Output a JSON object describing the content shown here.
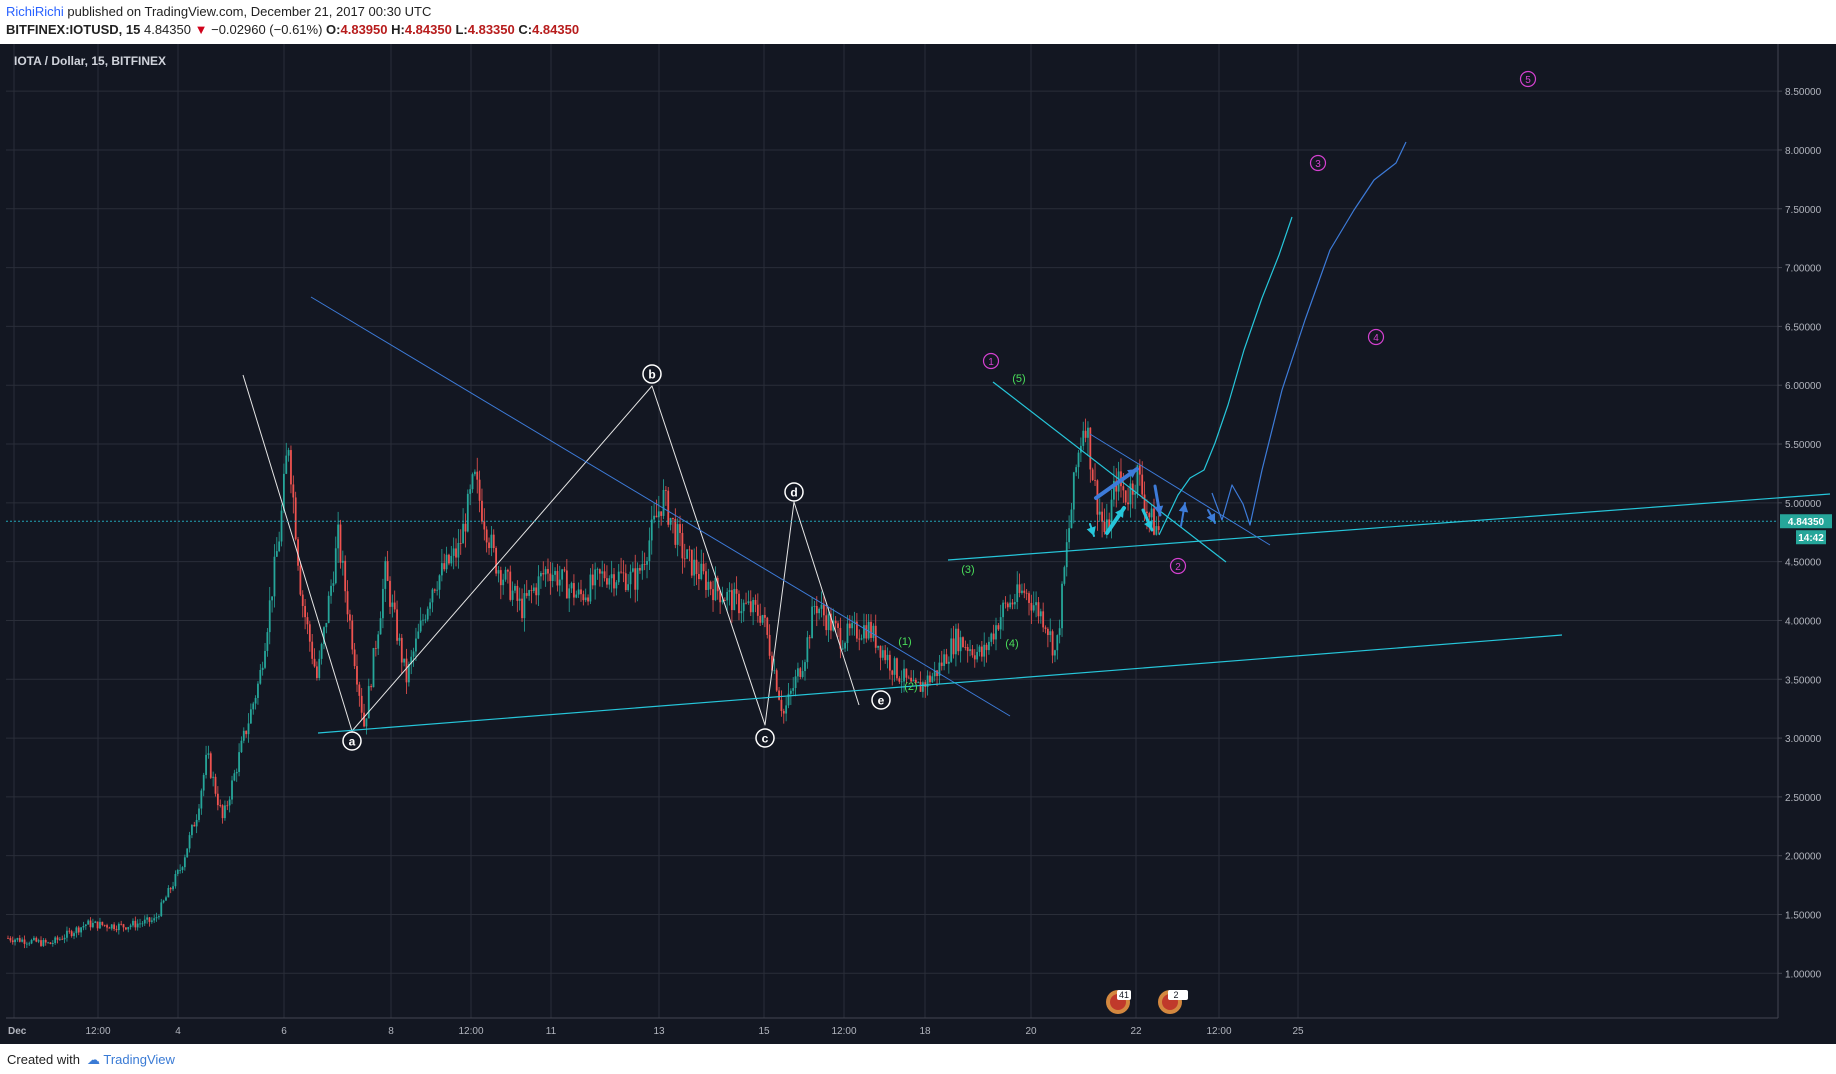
{
  "header": {
    "author": "RichiRichi",
    "published": " published on TradingView.com, December 21, 2017 00:30 UTC",
    "symbol": "BITFINEX:IOTUSD, 15",
    "last": "4.84350",
    "change_arrow": "▼",
    "change": "−0.02960 (−0.61%)",
    "o_label": "O:",
    "o": "4.83950",
    "h_label": "H:",
    "h": "4.84350",
    "l_label": "L:",
    "l": "4.83350",
    "c_label": "C:",
    "c": "4.84350"
  },
  "chart_title": "IOTA / Dollar, 15, BITFINEX",
  "price_badge": "4.84350",
  "time_badge": "14:42",
  "footer": {
    "created_with": "Created with",
    "brand": "TradingView"
  },
  "event_badges": [
    "41",
    "2"
  ],
  "colors": {
    "background": "#131722",
    "grid": "#2a2e39",
    "candle_up": "#26a69a",
    "candle_down": "#ef5350",
    "cyan": "#26c6da",
    "blue": "#3d7bd9",
    "magenta": "#d441d0",
    "green": "#4ade5a",
    "white": "#e6e6e6"
  },
  "chart_data": {
    "type": "line",
    "title": "IOTA / Dollar, 15, BITFINEX",
    "y_ticks": [
      "1.00000",
      "1.50000",
      "2.00000",
      "2.50000",
      "3.00000",
      "3.50000",
      "4.00000",
      "4.50000",
      "5.00000",
      "5.50000",
      "6.00000",
      "6.50000",
      "7.00000",
      "7.50000",
      "8.00000",
      "8.50000"
    ],
    "x_ticks": [
      "Dec",
      "12:00",
      "4",
      "6",
      "8",
      "12:00",
      "11",
      "13",
      "15",
      "12:00",
      "18",
      "20",
      "22",
      "12:00",
      "25"
    ],
    "ylim": [
      0.62,
      8.85
    ],
    "last_price": 4.8435,
    "price": [
      {
        "x": 0,
        "y": 1.3
      },
      {
        "x": 0.8,
        "y": 1.25
      },
      {
        "x": 1.5,
        "y": 1.42
      },
      {
        "x": 2.2,
        "y": 1.4
      },
      {
        "x": 2.8,
        "y": 1.45
      },
      {
        "x": 3.3,
        "y": 1.9
      },
      {
        "x": 3.6,
        "y": 2.35
      },
      {
        "x": 3.8,
        "y": 2.85
      },
      {
        "x": 4.1,
        "y": 2.3
      },
      {
        "x": 4.5,
        "y": 3.0
      },
      {
        "x": 4.8,
        "y": 3.5
      },
      {
        "x": 5.2,
        "y": 4.8
      },
      {
        "x": 5.35,
        "y": 5.55
      },
      {
        "x": 5.6,
        "y": 4.2
      },
      {
        "x": 5.9,
        "y": 3.5
      },
      {
        "x": 6.3,
        "y": 4.7
      },
      {
        "x": 6.8,
        "y": 3.1
      },
      {
        "x": 7.2,
        "y": 4.4
      },
      {
        "x": 7.6,
        "y": 3.5
      },
      {
        "x": 8.1,
        "y": 4.3
      },
      {
        "x": 8.6,
        "y": 4.6
      },
      {
        "x": 8.9,
        "y": 5.2
      },
      {
        "x": 9.3,
        "y": 4.5
      },
      {
        "x": 9.8,
        "y": 4.1
      },
      {
        "x": 10.3,
        "y": 4.45
      },
      {
        "x": 10.9,
        "y": 4.2
      },
      {
        "x": 11.4,
        "y": 4.4
      },
      {
        "x": 12.0,
        "y": 4.35
      },
      {
        "x": 12.5,
        "y": 5.05
      },
      {
        "x": 12.9,
        "y": 4.55
      },
      {
        "x": 13.4,
        "y": 4.3
      },
      {
        "x": 13.9,
        "y": 4.15
      },
      {
        "x": 14.4,
        "y": 4.05
      },
      {
        "x": 14.8,
        "y": 3.2
      },
      {
        "x": 15.2,
        "y": 3.7
      },
      {
        "x": 15.4,
        "y": 4.15
      },
      {
        "x": 15.9,
        "y": 3.85
      },
      {
        "x": 16.4,
        "y": 3.95
      },
      {
        "x": 16.9,
        "y": 3.6
      },
      {
        "x": 17.3,
        "y": 3.4
      },
      {
        "x": 17.7,
        "y": 3.55
      },
      {
        "x": 18.1,
        "y": 3.85
      },
      {
        "x": 18.6,
        "y": 3.7
      },
      {
        "x": 19.0,
        "y": 4.1
      },
      {
        "x": 19.4,
        "y": 4.25
      },
      {
        "x": 19.8,
        "y": 4.0
      },
      {
        "x": 20.0,
        "y": 3.7
      },
      {
        "x": 20.2,
        "y": 4.6
      },
      {
        "x": 20.4,
        "y": 5.35
      },
      {
        "x": 20.55,
        "y": 5.75
      },
      {
        "x": 20.75,
        "y": 5.1
      },
      {
        "x": 20.95,
        "y": 4.7
      },
      {
        "x": 21.15,
        "y": 5.2
      },
      {
        "x": 21.35,
        "y": 5.05
      },
      {
        "x": 21.55,
        "y": 5.25
      },
      {
        "x": 21.8,
        "y": 4.85
      },
      {
        "x": 22.0,
        "y": 4.75
      }
    ],
    "wave_labels": [
      {
        "label": "a",
        "x": 7.0,
        "y": 2.96
      },
      {
        "label": "b",
        "x": 12.97,
        "y": 6.04
      },
      {
        "label": "c",
        "x": 15.0,
        "y": 3.0
      },
      {
        "label": "d",
        "x": 15.6,
        "y": 5.07
      },
      {
        "label": "e",
        "x": 17.5,
        "y": 3.28
      }
    ],
    "subwave_labels": [
      {
        "label": "(1)",
        "x": 17.9,
        "y": 3.8
      },
      {
        "label": "(2)",
        "x": 18.1,
        "y": 3.42
      },
      {
        "label": "(3)",
        "x": 19.2,
        "y": 4.42
      },
      {
        "label": "(4)",
        "x": 20.1,
        "y": 3.77
      },
      {
        "label": "(5)",
        "x": 20.2,
        "y": 6.0
      }
    ],
    "projected_waves": [
      {
        "label": "1",
        "x": 19.7,
        "y": 6.15
      },
      {
        "label": "2",
        "x": 23.4,
        "y": 4.41
      },
      {
        "label": "3",
        "x": 26.1,
        "y": 7.83
      },
      {
        "label": "4",
        "x": 27.3,
        "y": 6.37
      },
      {
        "label": "5",
        "x": 30.3,
        "y": 8.54
      }
    ]
  }
}
